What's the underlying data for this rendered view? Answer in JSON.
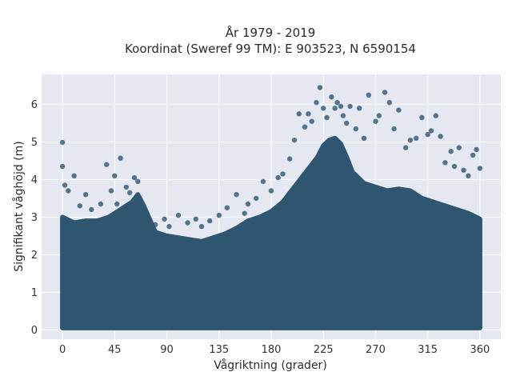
{
  "chart_data": {
    "type": "scatter",
    "title": "År 1979 - 2019",
    "subtitle": "Koordinat (Sweref 99 TM): E 903523, N 6590154",
    "xlabel": "Vågriktning (grader)",
    "ylabel": "Signifikant våghöjd (m)",
    "xlim": [
      -18,
      378
    ],
    "ylim": [
      -0.25,
      6.8
    ],
    "xticks": [
      0,
      45,
      90,
      135,
      180,
      225,
      270,
      315,
      360
    ],
    "yticks": [
      0,
      1,
      2,
      3,
      4,
      5,
      6
    ],
    "grid": true,
    "legend": "none",
    "colors": {
      "marker": "#2f5670",
      "plot_bg": "#e5e8f1",
      "grid": "#ffffff"
    },
    "series": [
      {
        "x": [
          0,
          0,
          2,
          5,
          10,
          15,
          20,
          25,
          33,
          38,
          42,
          45,
          47,
          50,
          55,
          58,
          62,
          65,
          70,
          75,
          80,
          88,
          92,
          100,
          108,
          115,
          120,
          127,
          135,
          142,
          150,
          157,
          160,
          167,
          173,
          180,
          186,
          190,
          196,
          200,
          204,
          209,
          212,
          215,
          219,
          222,
          225,
          228,
          232,
          235,
          237,
          240,
          242,
          245,
          248,
          253,
          256,
          260,
          264,
          270,
          273,
          278,
          282,
          286,
          290,
          296,
          300,
          305,
          310,
          315,
          318,
          322,
          326,
          330,
          335,
          338,
          342,
          346,
          350,
          354,
          357,
          360
        ],
        "y": [
          4.99,
          4.35,
          3.85,
          3.7,
          4.1,
          3.3,
          3.6,
          3.2,
          3.35,
          4.4,
          3.7,
          4.1,
          3.35,
          4.57,
          3.8,
          3.65,
          4.05,
          3.95,
          3.2,
          2.9,
          2.8,
          2.95,
          2.75,
          3.05,
          2.85,
          2.95,
          2.75,
          2.9,
          3.05,
          3.25,
          3.6,
          3.1,
          3.35,
          3.5,
          3.95,
          3.7,
          4.05,
          4.15,
          4.55,
          5.05,
          5.75,
          5.4,
          5.75,
          5.55,
          6.05,
          6.45,
          5.9,
          5.65,
          6.2,
          5.9,
          6.05,
          5.95,
          5.7,
          5.5,
          5.95,
          5.35,
          5.9,
          5.1,
          6.25,
          5.55,
          5.7,
          6.32,
          6.05,
          5.35,
          5.85,
          4.85,
          5.05,
          5.1,
          5.65,
          5.2,
          5.3,
          5.7,
          5.15,
          4.45,
          4.75,
          4.35,
          4.85,
          4.25,
          4.1,
          4.65,
          4.8,
          4.3
        ]
      }
    ],
    "envelope": {
      "directions": [
        0,
        10,
        20,
        30,
        40,
        50,
        60,
        65,
        70,
        80,
        90,
        100,
        110,
        120,
        130,
        140,
        150,
        160,
        170,
        180,
        190,
        200,
        210,
        220,
        225,
        230,
        235,
        240,
        245,
        250,
        260,
        270,
        280,
        290,
        300,
        310,
        320,
        330,
        340,
        350,
        360
      ],
      "upper_height": [
        3.0,
        2.85,
        2.9,
        2.9,
        3.0,
        3.2,
        3.4,
        3.6,
        3.3,
        2.6,
        2.5,
        2.45,
        2.4,
        2.35,
        2.45,
        2.55,
        2.7,
        2.9,
        3.0,
        3.15,
        3.4,
        3.8,
        4.2,
        4.6,
        4.9,
        5.05,
        5.1,
        4.95,
        4.6,
        4.2,
        3.9,
        3.8,
        3.7,
        3.75,
        3.7,
        3.5,
        3.4,
        3.3,
        3.2,
        3.1,
        2.95
      ],
      "lower_height": 0.05
    }
  }
}
